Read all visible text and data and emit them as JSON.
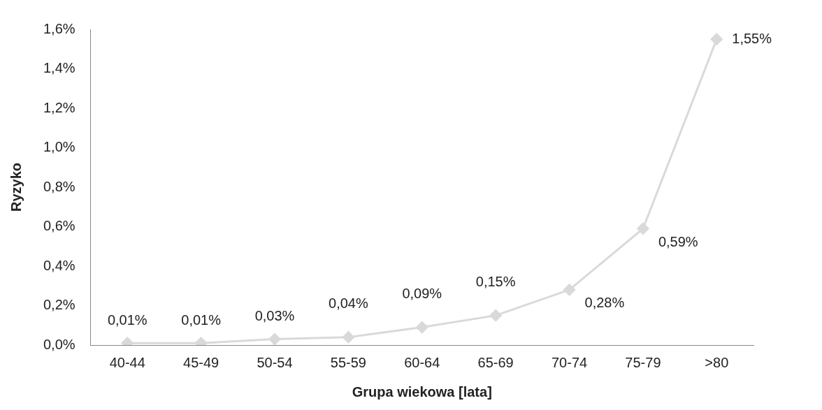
{
  "chart_data": {
    "type": "line",
    "xlabel": "Grupa wiekowa [lata]",
    "ylabel": "Ryzyko",
    "categories": [
      "40-44",
      "45-49",
      "50-54",
      "55-59",
      "60-64",
      "65-69",
      "70-74",
      "75-79",
      ">80"
    ],
    "series": [
      {
        "color": "#d9d9d9",
        "values": [
          0.01,
          0.01,
          0.03,
          0.04,
          0.09,
          0.15,
          0.28,
          0.59,
          1.55
        ],
        "value_labels": [
          "0,01%",
          "0,01%",
          "0,03%",
          "0,04%",
          "0,09%",
          "0,15%",
          "0,28%",
          "0,59%",
          "1,55%"
        ]
      }
    ],
    "ylim": [
      0,
      1.6
    ],
    "yticks": [
      {
        "value": 0,
        "label": "0,0%"
      },
      {
        "value": 0.2,
        "label": "0,2%"
      },
      {
        "value": 0.4,
        "label": "0,4%"
      },
      {
        "value": 0.6,
        "label": "0,6%"
      },
      {
        "value": 0.8,
        "label": "0,8%"
      },
      {
        "value": 1.0,
        "label": "1,0%"
      },
      {
        "value": 1.2,
        "label": "1,2%"
      },
      {
        "value": 1.4,
        "label": "1,4%"
      },
      {
        "value": 1.6,
        "label": "1,6%"
      }
    ],
    "grid": false,
    "legend": false,
    "marker": "diamond",
    "line_style": "solid"
  }
}
